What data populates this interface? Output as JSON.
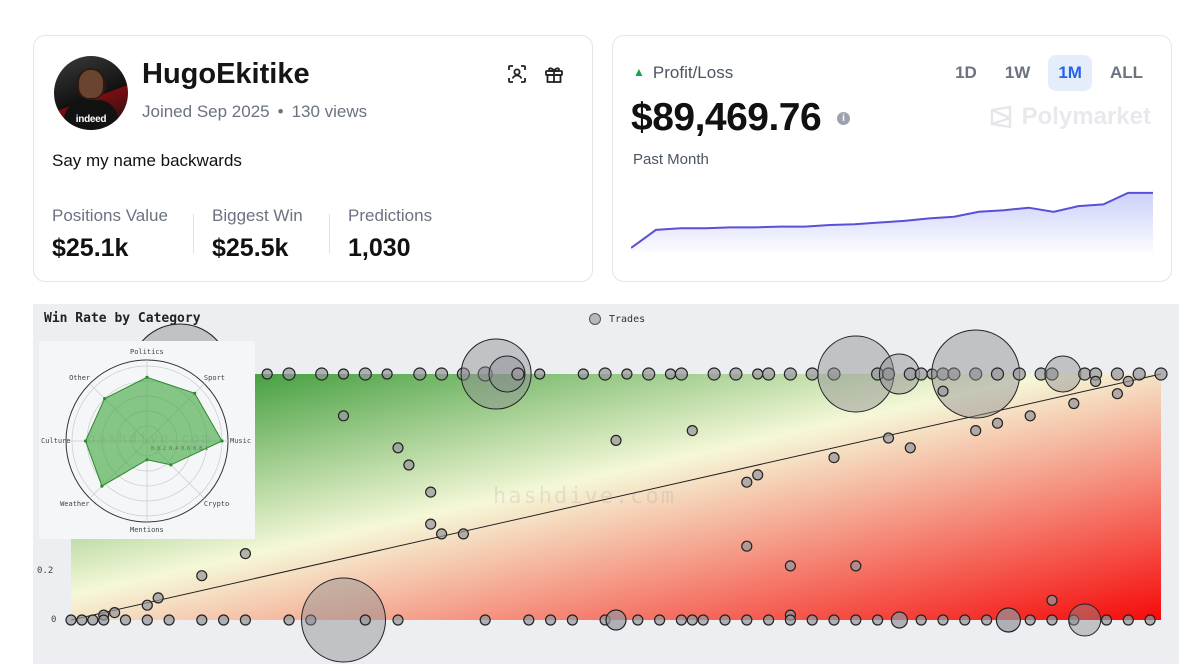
{
  "profile": {
    "username": "HugoEkitike",
    "joined": "Joined Sep 2025",
    "views": "130 views",
    "bio": "Say my name backwards",
    "avatar_sponsor_text": "indeed",
    "stats": [
      {
        "label": "Positions Value",
        "value": "$25.1k"
      },
      {
        "label": "Biggest Win",
        "value": "$25.5k"
      },
      {
        "label": "Predictions",
        "value": "1,030"
      }
    ],
    "icons": [
      "scan-icon",
      "gift-icon"
    ]
  },
  "pnl": {
    "title": "Profit/Loss",
    "value": "$89,469.76",
    "period_label": "Past Month",
    "brand": "Polymarket",
    "ranges": [
      {
        "label": "1D",
        "active": false
      },
      {
        "label": "1W",
        "active": false
      },
      {
        "label": "1M",
        "active": true
      },
      {
        "label": "ALL",
        "active": false
      }
    ],
    "accent_color": "#5b4fd6",
    "series_relative": [
      0.0,
      0.22,
      0.24,
      0.24,
      0.25,
      0.25,
      0.26,
      0.26,
      0.28,
      0.29,
      0.31,
      0.33,
      0.36,
      0.38,
      0.44,
      0.46,
      0.49,
      0.44,
      0.51,
      0.53,
      0.67,
      0.67
    ]
  },
  "winrate": {
    "title": "Win Rate by Category",
    "legend": "Trades",
    "watermark": "hashdive.com",
    "y_ticks": [
      "0.2",
      "0"
    ],
    "radar": {
      "categories": [
        "Politics",
        "Sport",
        "Music",
        "Crypto",
        "Mentions",
        "Weather",
        "Culture",
        "Other"
      ],
      "values": [
        0.85,
        0.9,
        1.0,
        0.45,
        0.25,
        0.85,
        0.82,
        0.8
      ],
      "tick_text": "0 0.2 0.4 0.6 0.8 1"
    },
    "points_top": [
      [
        0.05,
        6
      ],
      [
        0.1,
        6
      ],
      [
        0.1,
        50
      ],
      [
        0.13,
        6
      ],
      [
        0.18,
        5
      ],
      [
        0.2,
        6
      ],
      [
        0.23,
        6
      ],
      [
        0.25,
        5
      ],
      [
        0.27,
        6
      ],
      [
        0.29,
        5
      ],
      [
        0.32,
        6
      ],
      [
        0.34,
        6
      ],
      [
        0.36,
        6
      ],
      [
        0.38,
        7
      ],
      [
        0.39,
        35
      ],
      [
        0.4,
        18
      ],
      [
        0.41,
        6
      ],
      [
        0.43,
        5
      ],
      [
        0.47,
        5
      ],
      [
        0.49,
        6
      ],
      [
        0.51,
        5
      ],
      [
        0.53,
        6
      ],
      [
        0.55,
        5
      ],
      [
        0.56,
        6
      ],
      [
        0.59,
        6
      ],
      [
        0.61,
        6
      ],
      [
        0.63,
        5
      ],
      [
        0.64,
        6
      ],
      [
        0.66,
        6
      ],
      [
        0.68,
        6
      ],
      [
        0.7,
        6
      ],
      [
        0.72,
        38
      ],
      [
        0.74,
        6
      ],
      [
        0.75,
        6
      ],
      [
        0.76,
        20
      ],
      [
        0.77,
        6
      ],
      [
        0.78,
        6
      ],
      [
        0.79,
        5
      ],
      [
        0.8,
        6
      ],
      [
        0.81,
        6
      ],
      [
        0.83,
        6
      ],
      [
        0.83,
        44
      ],
      [
        0.85,
        6
      ],
      [
        0.87,
        6
      ],
      [
        0.89,
        6
      ],
      [
        0.9,
        6
      ],
      [
        0.91,
        18
      ],
      [
        0.93,
        6
      ],
      [
        0.94,
        6
      ],
      [
        0.96,
        6
      ],
      [
        0.98,
        6
      ],
      [
        1.0,
        6
      ]
    ],
    "points_mid": [
      [
        0.25,
        0.83,
        5
      ],
      [
        0.3,
        0.7,
        5
      ],
      [
        0.31,
        0.63,
        5
      ],
      [
        0.33,
        0.52,
        5
      ],
      [
        0.33,
        0.39,
        5
      ],
      [
        0.34,
        0.35,
        5
      ],
      [
        0.36,
        0.35,
        5
      ],
      [
        0.5,
        0.73,
        5
      ],
      [
        0.57,
        0.77,
        5
      ],
      [
        0.62,
        0.56,
        5
      ],
      [
        0.63,
        0.59,
        5
      ],
      [
        0.62,
        0.3,
        5
      ],
      [
        0.66,
        0.22,
        5
      ],
      [
        0.66,
        0.02,
        5
      ],
      [
        0.7,
        0.66,
        5
      ],
      [
        0.72,
        0.22,
        5
      ],
      [
        0.75,
        0.74,
        5
      ],
      [
        0.77,
        0.7,
        5
      ],
      [
        0.8,
        0.93,
        5
      ],
      [
        0.83,
        0.77,
        5
      ],
      [
        0.85,
        0.8,
        5
      ],
      [
        0.88,
        0.83,
        5
      ],
      [
        0.9,
        0.08,
        5
      ],
      [
        0.92,
        0.88,
        5
      ],
      [
        0.94,
        0.97,
        5
      ],
      [
        0.96,
        0.92,
        5
      ],
      [
        0.97,
        0.97,
        5
      ],
      [
        0.16,
        0.27,
        5
      ],
      [
        0.12,
        0.18,
        5
      ],
      [
        0.08,
        0.09,
        5
      ],
      [
        0.07,
        0.06,
        5
      ],
      [
        0.04,
        0.03,
        5
      ],
      [
        0.03,
        0.02,
        5
      ]
    ],
    "points_bottom": [
      [
        0.0,
        5
      ],
      [
        0.01,
        5
      ],
      [
        0.02,
        5
      ],
      [
        0.03,
        5
      ],
      [
        0.05,
        5
      ],
      [
        0.07,
        5
      ],
      [
        0.09,
        5
      ],
      [
        0.12,
        5
      ],
      [
        0.14,
        5
      ],
      [
        0.16,
        5
      ],
      [
        0.2,
        5
      ],
      [
        0.22,
        5
      ],
      [
        0.25,
        42
      ],
      [
        0.27,
        5
      ],
      [
        0.3,
        5
      ],
      [
        0.38,
        5
      ],
      [
        0.42,
        5
      ],
      [
        0.44,
        5
      ],
      [
        0.46,
        5
      ],
      [
        0.49,
        5
      ],
      [
        0.5,
        10
      ],
      [
        0.52,
        5
      ],
      [
        0.54,
        5
      ],
      [
        0.56,
        5
      ],
      [
        0.57,
        5
      ],
      [
        0.58,
        5
      ],
      [
        0.6,
        5
      ],
      [
        0.62,
        5
      ],
      [
        0.64,
        5
      ],
      [
        0.66,
        5
      ],
      [
        0.68,
        5
      ],
      [
        0.7,
        5
      ],
      [
        0.72,
        5
      ],
      [
        0.74,
        5
      ],
      [
        0.76,
        8
      ],
      [
        0.78,
        5
      ],
      [
        0.8,
        5
      ],
      [
        0.82,
        5
      ],
      [
        0.84,
        5
      ],
      [
        0.86,
        12
      ],
      [
        0.88,
        5
      ],
      [
        0.9,
        5
      ],
      [
        0.92,
        5
      ],
      [
        0.93,
        16
      ],
      [
        0.95,
        5
      ],
      [
        0.97,
        5
      ],
      [
        0.99,
        5
      ]
    ]
  }
}
